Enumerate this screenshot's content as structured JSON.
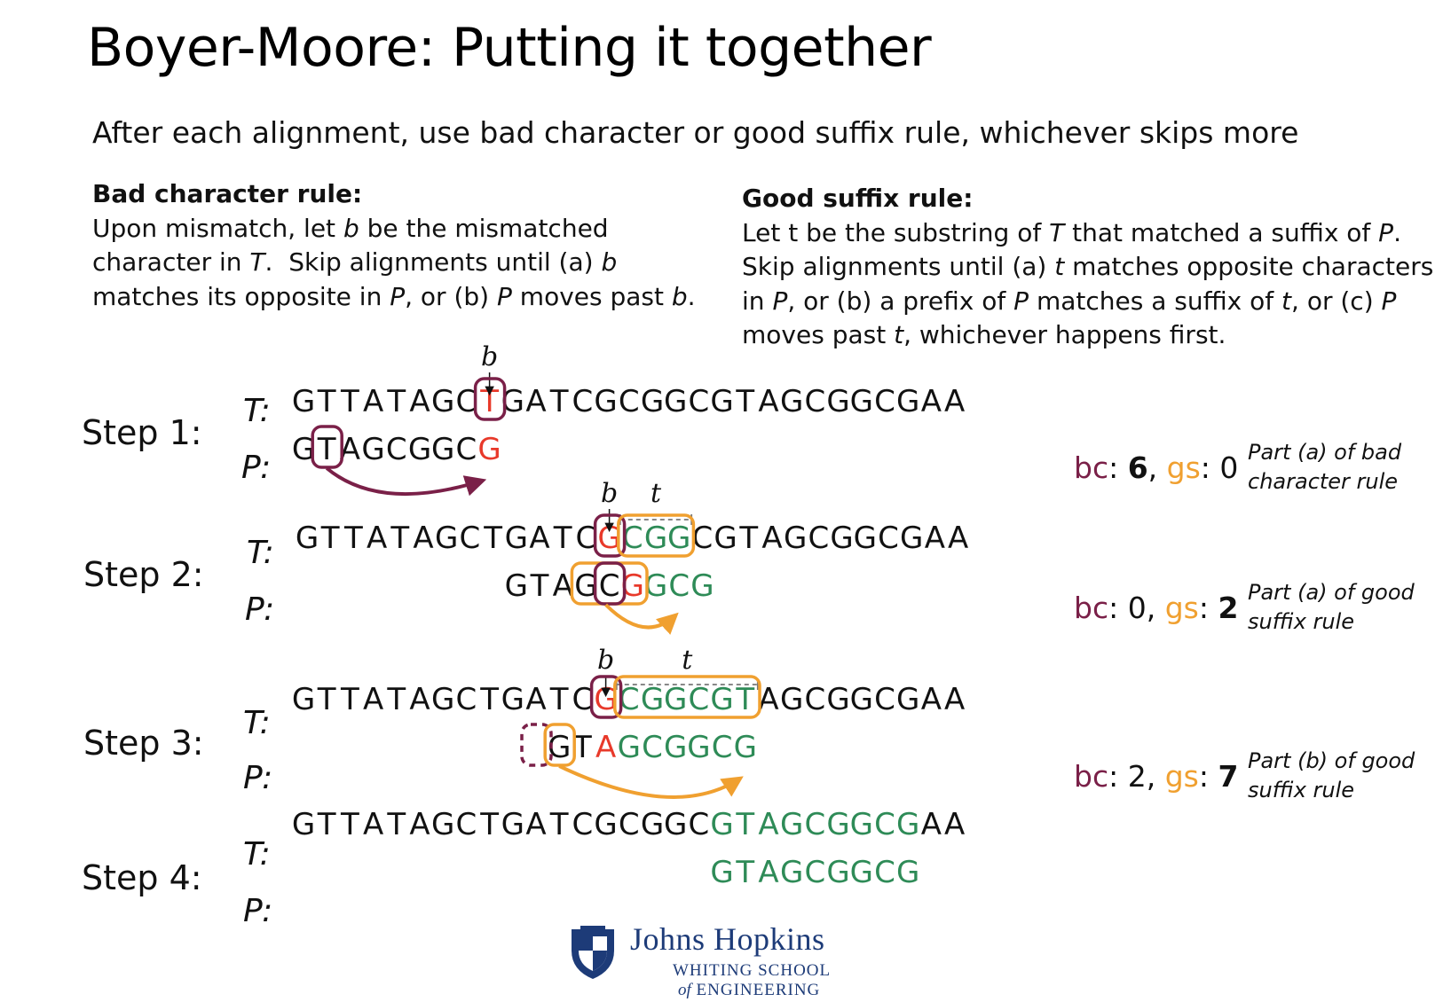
{
  "title": "Boyer-Moore: Putting it together",
  "subtitle": "After each alignment, use bad character or good suffix rule, whichever skips more",
  "bad_rule": {
    "heading": "Bad character rule:",
    "line1_pre": "Upon mismatch, let ",
    "line1_b": "b",
    "line1_post": " be the mismatched",
    "line2_pre": "character in ",
    "line2_T": "T",
    "line2_mid": ".  Skip alignments until (a) ",
    "line2_b": "b",
    "line3_pre": "matches its opposite in ",
    "line3_P": "P",
    "line3_mid": ", or (b) ",
    "line3_P2": "P",
    "line3_mid2": " moves past ",
    "line3_b": "b",
    "line3_end": "."
  },
  "good_rule": {
    "heading": "Good suffix rule:",
    "line1_pre": "Let t be the substring of ",
    "line1_T": "T",
    "line1_mid": " that matched a suffix of ",
    "line1_P": "P",
    "line1_end": ".",
    "line2_pre": "Skip alignments until (a) ",
    "line2_t": "t",
    "line2_post": " matches opposite characters",
    "line3_pre": "in ",
    "line3_P": "P",
    "line3_mid": ", or (b) a prefix of ",
    "line3_P2": "P",
    "line3_mid2": " matches a suffix of ",
    "line3_t": "t",
    "line3_end": ", or (c) ",
    "line3_P3": "P",
    "line4_pre": "moves past ",
    "line4_t": "t",
    "line4_end": ", whichever happens first."
  },
  "labels": {
    "T": "T:",
    "P": "P:",
    "b": "b",
    "t": "t",
    "bc": "bc",
    "gs": "gs"
  },
  "colors": {
    "mismatch": "#e8392a",
    "match": "#2e8b57",
    "bad_char": "#7a2048",
    "good_suffix": "#f0a030",
    "text": "#111111"
  },
  "steps": [
    {
      "label": "Step 1:",
      "text": "GTTATAGCTGATCGCGGCGTAGCGGCGAA",
      "pattern": "GTAGCGGCG",
      "pattern_offset": 0,
      "bc": "6",
      "gs": "0",
      "bc_sep": ": ",
      "gs_sep": ": ",
      "comma": ", ",
      "bold": "bc",
      "note": [
        "Part (a) of bad",
        "character rule"
      ]
    },
    {
      "label": "Step 2:",
      "text": "GTTATAGCTGATCGCGGCGTAGCGGCGAA",
      "pattern": "GTAGCGGCG",
      "pattern_offset": 6,
      "bc": "0",
      "gs": "2",
      "bc_sep": ": ",
      "gs_sep": ": ",
      "comma": ", ",
      "bold": "gs",
      "note": [
        "Part (a) of good",
        "suffix rule"
      ]
    },
    {
      "label": "Step 3:",
      "text": "GTTATAGCTGATCGCGGCGTAGCGGCGAA",
      "pattern": "GTAGCGGCG",
      "pattern_offset": 8,
      "bc": "2",
      "gs": "7",
      "bc_sep": ": ",
      "gs_sep": ": ",
      "comma": ", ",
      "bold": "gs",
      "note": [
        "Part (b) of good",
        "suffix rule"
      ]
    },
    {
      "label": "Step 4:",
      "text": "GTTATAGCTGATCGCGGCGTAGCGGCGAA",
      "pattern": "GTAGCGGCG",
      "pattern_offset": 15,
      "note": []
    }
  ],
  "logo": {
    "name": "Johns Hopkins",
    "school": "WHITING SCHOOL",
    "of": "of",
    "eng": "ENGINEERING"
  }
}
